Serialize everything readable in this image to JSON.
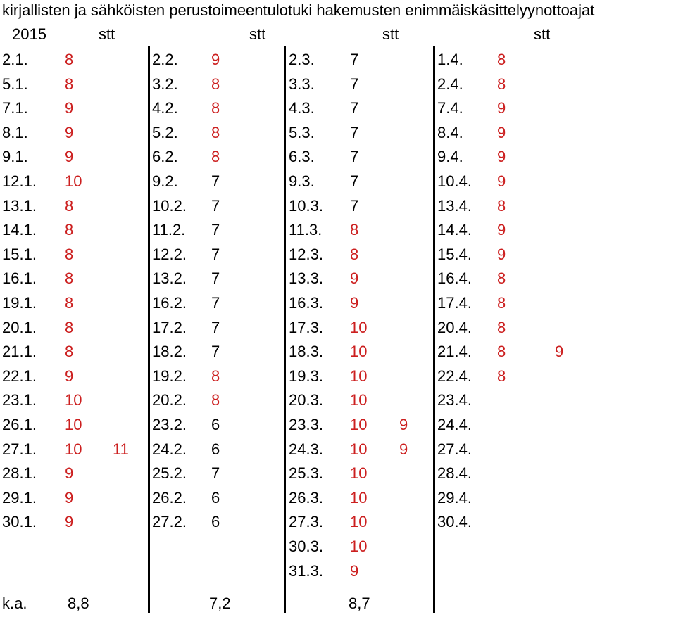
{
  "title": "kirjallisten ja sähköisten perustoimeentulotuki hakemusten enimmäiskäsittelyynottoajat",
  "header": {
    "year": "2015",
    "stt": [
      "stt",
      "stt",
      "stt",
      "stt"
    ]
  },
  "colors": {
    "value": "#cc1f1f",
    "date": "#000000",
    "divider": "#000000"
  },
  "columns": [
    {
      "value_color": "red",
      "rows": [
        {
          "d": "2.1.",
          "v": "8"
        },
        {
          "d": "5.1.",
          "v": "8"
        },
        {
          "d": "7.1.",
          "v": "9"
        },
        {
          "d": "8.1.",
          "v": "9"
        },
        {
          "d": "9.1.",
          "v": "9"
        },
        {
          "d": "12.1.",
          "v": "10"
        },
        {
          "d": "13.1.",
          "v": "8"
        },
        {
          "d": "14.1.",
          "v": "8"
        },
        {
          "d": "15.1.",
          "v": "8"
        },
        {
          "d": "16.1.",
          "v": "8"
        },
        {
          "d": "19.1.",
          "v": "8"
        },
        {
          "d": "20.1.",
          "v": "8"
        },
        {
          "d": "21.1.",
          "v": "8"
        },
        {
          "d": "22.1.",
          "v": "9"
        },
        {
          "d": "23.1.",
          "v": "10"
        },
        {
          "d": "26.1.",
          "v": "10"
        },
        {
          "d": "27.1.",
          "v": "10",
          "x": "11"
        },
        {
          "d": "28.1.",
          "v": "9"
        },
        {
          "d": "29.1.",
          "v": "9"
        },
        {
          "d": "30.1.",
          "v": "9"
        }
      ],
      "avg_label": "k.a.",
      "avg": "8,8"
    },
    {
      "value_color": "mixed",
      "rows": [
        {
          "d": "2.2.",
          "v": "9",
          "r": true
        },
        {
          "d": "3.2.",
          "v": "8",
          "r": true
        },
        {
          "d": "4.2.",
          "v": "8",
          "r": true
        },
        {
          "d": "5.2.",
          "v": "8",
          "r": true
        },
        {
          "d": "6.2.",
          "v": "8",
          "r": true
        },
        {
          "d": "9.2.",
          "v": "7"
        },
        {
          "d": "10.2.",
          "v": "7"
        },
        {
          "d": "11.2.",
          "v": "7"
        },
        {
          "d": "12.2.",
          "v": "7"
        },
        {
          "d": "13.2.",
          "v": "7"
        },
        {
          "d": "16.2.",
          "v": "7"
        },
        {
          "d": "17.2.",
          "v": "7"
        },
        {
          "d": "18.2.",
          "v": "7"
        },
        {
          "d": "19.2.",
          "v": "8",
          "r": true
        },
        {
          "d": "20.2.",
          "v": "8",
          "r": true
        },
        {
          "d": "23.2.",
          "v": "6"
        },
        {
          "d": "24.2.",
          "v": "6"
        },
        {
          "d": "25.2.",
          "v": "7"
        },
        {
          "d": "26.2.",
          "v": "6"
        },
        {
          "d": "27.2.",
          "v": "6"
        }
      ],
      "avg": "7,2"
    },
    {
      "value_color": "mixed",
      "rows": [
        {
          "d": "2.3.",
          "v": "7"
        },
        {
          "d": "3.3.",
          "v": "7"
        },
        {
          "d": "4.3.",
          "v": "7"
        },
        {
          "d": "5.3.",
          "v": "7"
        },
        {
          "d": "6.3.",
          "v": "7"
        },
        {
          "d": "9.3.",
          "v": "7"
        },
        {
          "d": "10.3.",
          "v": "7"
        },
        {
          "d": "11.3.",
          "v": "8",
          "r": true
        },
        {
          "d": "12.3.",
          "v": "8",
          "r": true
        },
        {
          "d": "13.3.",
          "v": "9",
          "r": true
        },
        {
          "d": "16.3.",
          "v": "9",
          "r": true
        },
        {
          "d": "17.3.",
          "v": "10",
          "r": true
        },
        {
          "d": "18.3.",
          "v": "10",
          "r": true
        },
        {
          "d": "19.3.",
          "v": "10",
          "r": true
        },
        {
          "d": "20.3.",
          "v": "10",
          "r": true
        },
        {
          "d": "23.3.",
          "v": "10",
          "r": true,
          "x": "9"
        },
        {
          "d": "24.3.",
          "v": "10",
          "r": true,
          "x": "9"
        },
        {
          "d": "25.3.",
          "v": "10",
          "r": true
        },
        {
          "d": "26.3.",
          "v": "10",
          "r": true
        },
        {
          "d": "27.3.",
          "v": "10",
          "r": true
        },
        {
          "d": "30.3.",
          "v": "10",
          "r": true
        },
        {
          "d": "31.3.",
          "v": "9",
          "r": true
        }
      ],
      "avg": "8,7"
    },
    {
      "value_color": "red",
      "rows": [
        {
          "d": "1.4.",
          "v": "8"
        },
        {
          "d": "2.4.",
          "v": "8"
        },
        {
          "d": "7.4.",
          "v": "9"
        },
        {
          "d": "8.4.",
          "v": "9"
        },
        {
          "d": "9.4.",
          "v": "9"
        },
        {
          "d": "10.4.",
          "v": "9"
        },
        {
          "d": "13.4.",
          "v": "8"
        },
        {
          "d": "14.4.",
          "v": "9"
        },
        {
          "d": "15.4.",
          "v": "9"
        },
        {
          "d": "16.4.",
          "v": "8"
        },
        {
          "d": "17.4.",
          "v": "8"
        },
        {
          "d": "20.4.",
          "v": "8"
        },
        {
          "d": "21.4.",
          "v": "8",
          "x": "9"
        },
        {
          "d": "22.4.",
          "v": "8"
        },
        {
          "d": "23.4.",
          "v": ""
        },
        {
          "d": "24.4.",
          "v": ""
        },
        {
          "d": "27.4.",
          "v": ""
        },
        {
          "d": "28.4.",
          "v": ""
        },
        {
          "d": "29.4.",
          "v": ""
        },
        {
          "d": "30.4.",
          "v": ""
        }
      ]
    }
  ]
}
